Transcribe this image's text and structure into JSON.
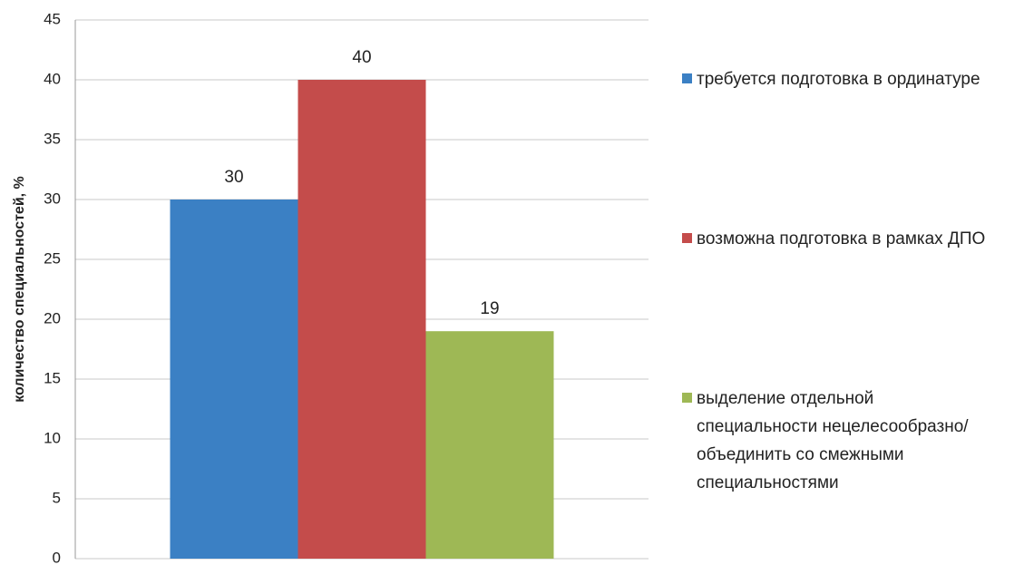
{
  "chart_data": {
    "type": "bar",
    "y_label": "количество специальностей, %",
    "categories": [
      null
    ],
    "series": [
      {
        "name": "требуется подготовка в ординатуре",
        "color": "#3b80c4",
        "values": [
          30
        ]
      },
      {
        "name": "возможна подготовка в рамках ДПО",
        "color": "#c44c4b",
        "values": [
          40
        ]
      },
      {
        "name": "выделение отдельной специальности нецелесообразно/объединить со смежными специальностями",
        "color": "#9eb855",
        "values": [
          19
        ]
      }
    ],
    "ylim": [
      0,
      45
    ],
    "yticks": [
      0,
      5,
      10,
      15,
      20,
      25,
      30,
      35,
      40,
      45
    ],
    "grid": true,
    "legend": "right"
  }
}
